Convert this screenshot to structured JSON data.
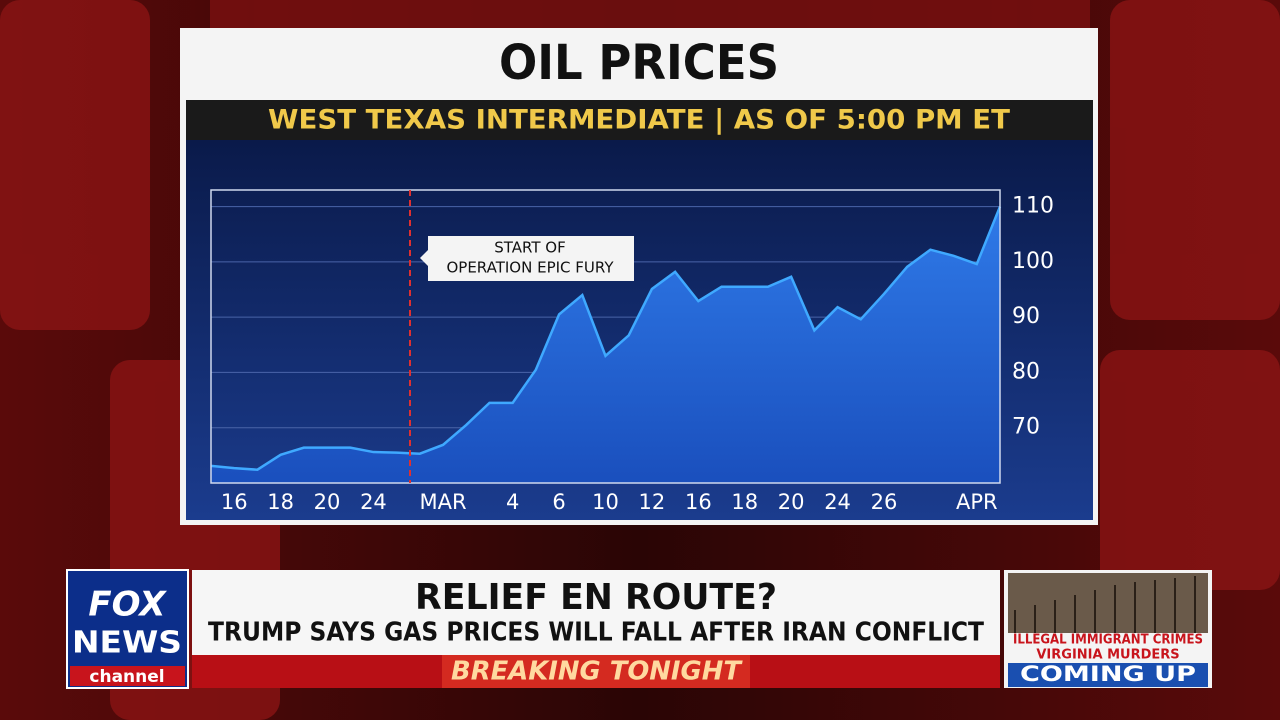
{
  "chart_data": {
    "type": "area",
    "title": "OIL PRICES",
    "subtitle": "WEST TEXAS INTERMEDIATE | AS OF 5:00 PM ET",
    "annotation": [
      "START OF",
      "OPERATION EPIC FURY"
    ],
    "categories": [
      null,
      "16",
      null,
      "18",
      null,
      "20",
      null,
      "24",
      null,
      null,
      "MAR",
      null,
      null,
      "4",
      null,
      "6",
      null,
      "10",
      null,
      "12",
      null,
      "16",
      null,
      "18",
      null,
      "20",
      null,
      "24",
      null,
      "26",
      null,
      null,
      null,
      "APR",
      null
    ],
    "values": [
      63.1,
      62.7,
      62.4,
      65.1,
      66.4,
      66.4,
      66.4,
      65.6,
      65.5,
      65.3,
      66.9,
      70.5,
      74.5,
      74.5,
      80.5,
      90.5,
      94,
      83,
      86.7,
      95.1,
      98.2,
      92.9,
      95.5,
      95.5,
      95.5,
      97.3,
      87.6,
      91.8,
      89.6,
      94.2,
      99.1,
      102.2,
      101.1,
      99.6,
      110
    ],
    "color": "#3fa9ff",
    "ylim": [
      60,
      113
    ],
    "yticks": [
      70,
      80,
      90,
      100,
      110
    ],
    "grid": true
  },
  "logo": {
    "line1": "FOX",
    "line2": "NEWS",
    "line3": "channel"
  },
  "lower_third": {
    "headline": "RELIEF EN ROUTE?",
    "subheadline": "TRUMP SAYS GAS PRICES WILL FALL AFTER IRAN CONFLICT",
    "banner": "BREAKING TONIGHT"
  },
  "teaser": {
    "line1": "ILLEGAL IMMIGRANT CRIMES",
    "line2": "VIRGINIA MURDERS",
    "label": "COMING UP"
  }
}
